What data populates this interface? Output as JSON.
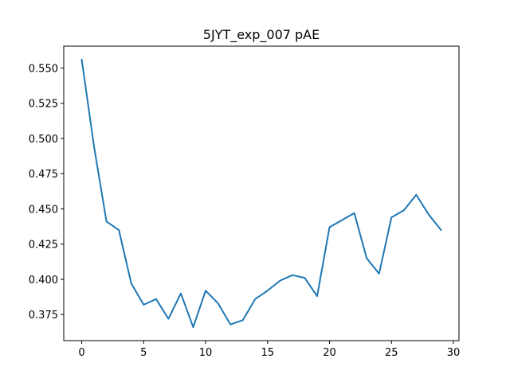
{
  "chart_data": {
    "type": "line",
    "title": "5JYT_exp_007 pAE",
    "xlabel": "",
    "ylabel": "",
    "xlim": [
      -1.45,
      30.45
    ],
    "ylim": [
      0.3565,
      0.5655
    ],
    "grid": false,
    "x_ticks": [
      0,
      5,
      10,
      15,
      20,
      25,
      30
    ],
    "x_tick_labels": [
      "0",
      "5",
      "10",
      "15",
      "20",
      "25",
      "30"
    ],
    "y_ticks": [
      0.375,
      0.4,
      0.425,
      0.45,
      0.475,
      0.5,
      0.525,
      0.55
    ],
    "y_tick_labels": [
      "0.375",
      "0.400",
      "0.425",
      "0.450",
      "0.475",
      "0.500",
      "0.525",
      "0.550"
    ],
    "series": [
      {
        "color": "#1f77b4",
        "x": [
          0,
          1,
          2,
          3,
          4,
          5,
          6,
          7,
          8,
          9,
          10,
          11,
          12,
          13,
          14,
          15,
          16,
          17,
          18,
          19,
          20,
          21,
          22,
          23,
          24,
          25,
          26,
          27,
          28,
          29
        ],
        "y": [
          0.556,
          0.494,
          0.441,
          0.435,
          0.397,
          0.382,
          0.386,
          0.372,
          0.39,
          0.366,
          0.392,
          0.383,
          0.368,
          0.371,
          0.386,
          0.392,
          0.399,
          0.403,
          0.401,
          0.388,
          0.437,
          0.442,
          0.447,
          0.415,
          0.404,
          0.444,
          0.449,
          0.46,
          0.446,
          0.435
        ]
      }
    ]
  }
}
